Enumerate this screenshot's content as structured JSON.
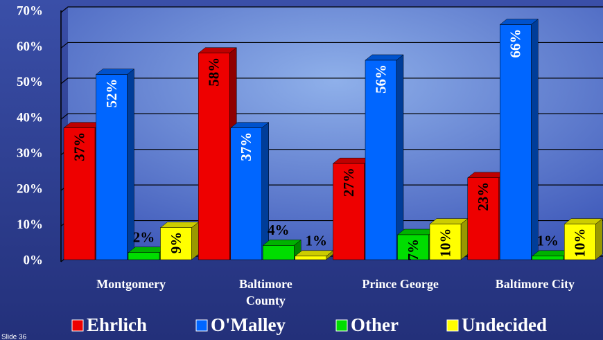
{
  "chart_data": {
    "type": "bar",
    "categories": [
      "Montgomery",
      "Baltimore County",
      "Prince George",
      "Baltimore City"
    ],
    "series": [
      {
        "name": "Ehrlich",
        "color": "#ee0000",
        "values": [
          37,
          58,
          27,
          23
        ],
        "value_labels": [
          "37%",
          "58%",
          "27%",
          "23%"
        ]
      },
      {
        "name": "O'Malley",
        "color": "#0066ff",
        "values": [
          52,
          37,
          56,
          66
        ],
        "value_labels": [
          "52%",
          "37%",
          "56%",
          "66%"
        ]
      },
      {
        "name": "Other",
        "color": "#00dd00",
        "values": [
          2,
          4,
          7,
          1
        ],
        "value_labels": [
          "2%",
          "4%",
          "7%",
          "1%"
        ]
      },
      {
        "name": "Undecided",
        "color": "#ffff00",
        "values": [
          9,
          1,
          10,
          10
        ],
        "value_labels": [
          "9%",
          "1%",
          "10%",
          "10%"
        ]
      }
    ],
    "ylim": [
      0,
      70
    ],
    "yticks": [
      {
        "value": 0,
        "label": "0%"
      },
      {
        "value": 10,
        "label": "10%"
      },
      {
        "value": 20,
        "label": "20%"
      },
      {
        "value": 30,
        "label": "30%"
      },
      {
        "value": 40,
        "label": "40%"
      },
      {
        "value": 50,
        "label": "50%"
      },
      {
        "value": 60,
        "label": "60%"
      },
      {
        "value": 70,
        "label": "70%"
      }
    ],
    "grid": true,
    "legend": "bottom"
  },
  "slide_label": "Slide 36"
}
